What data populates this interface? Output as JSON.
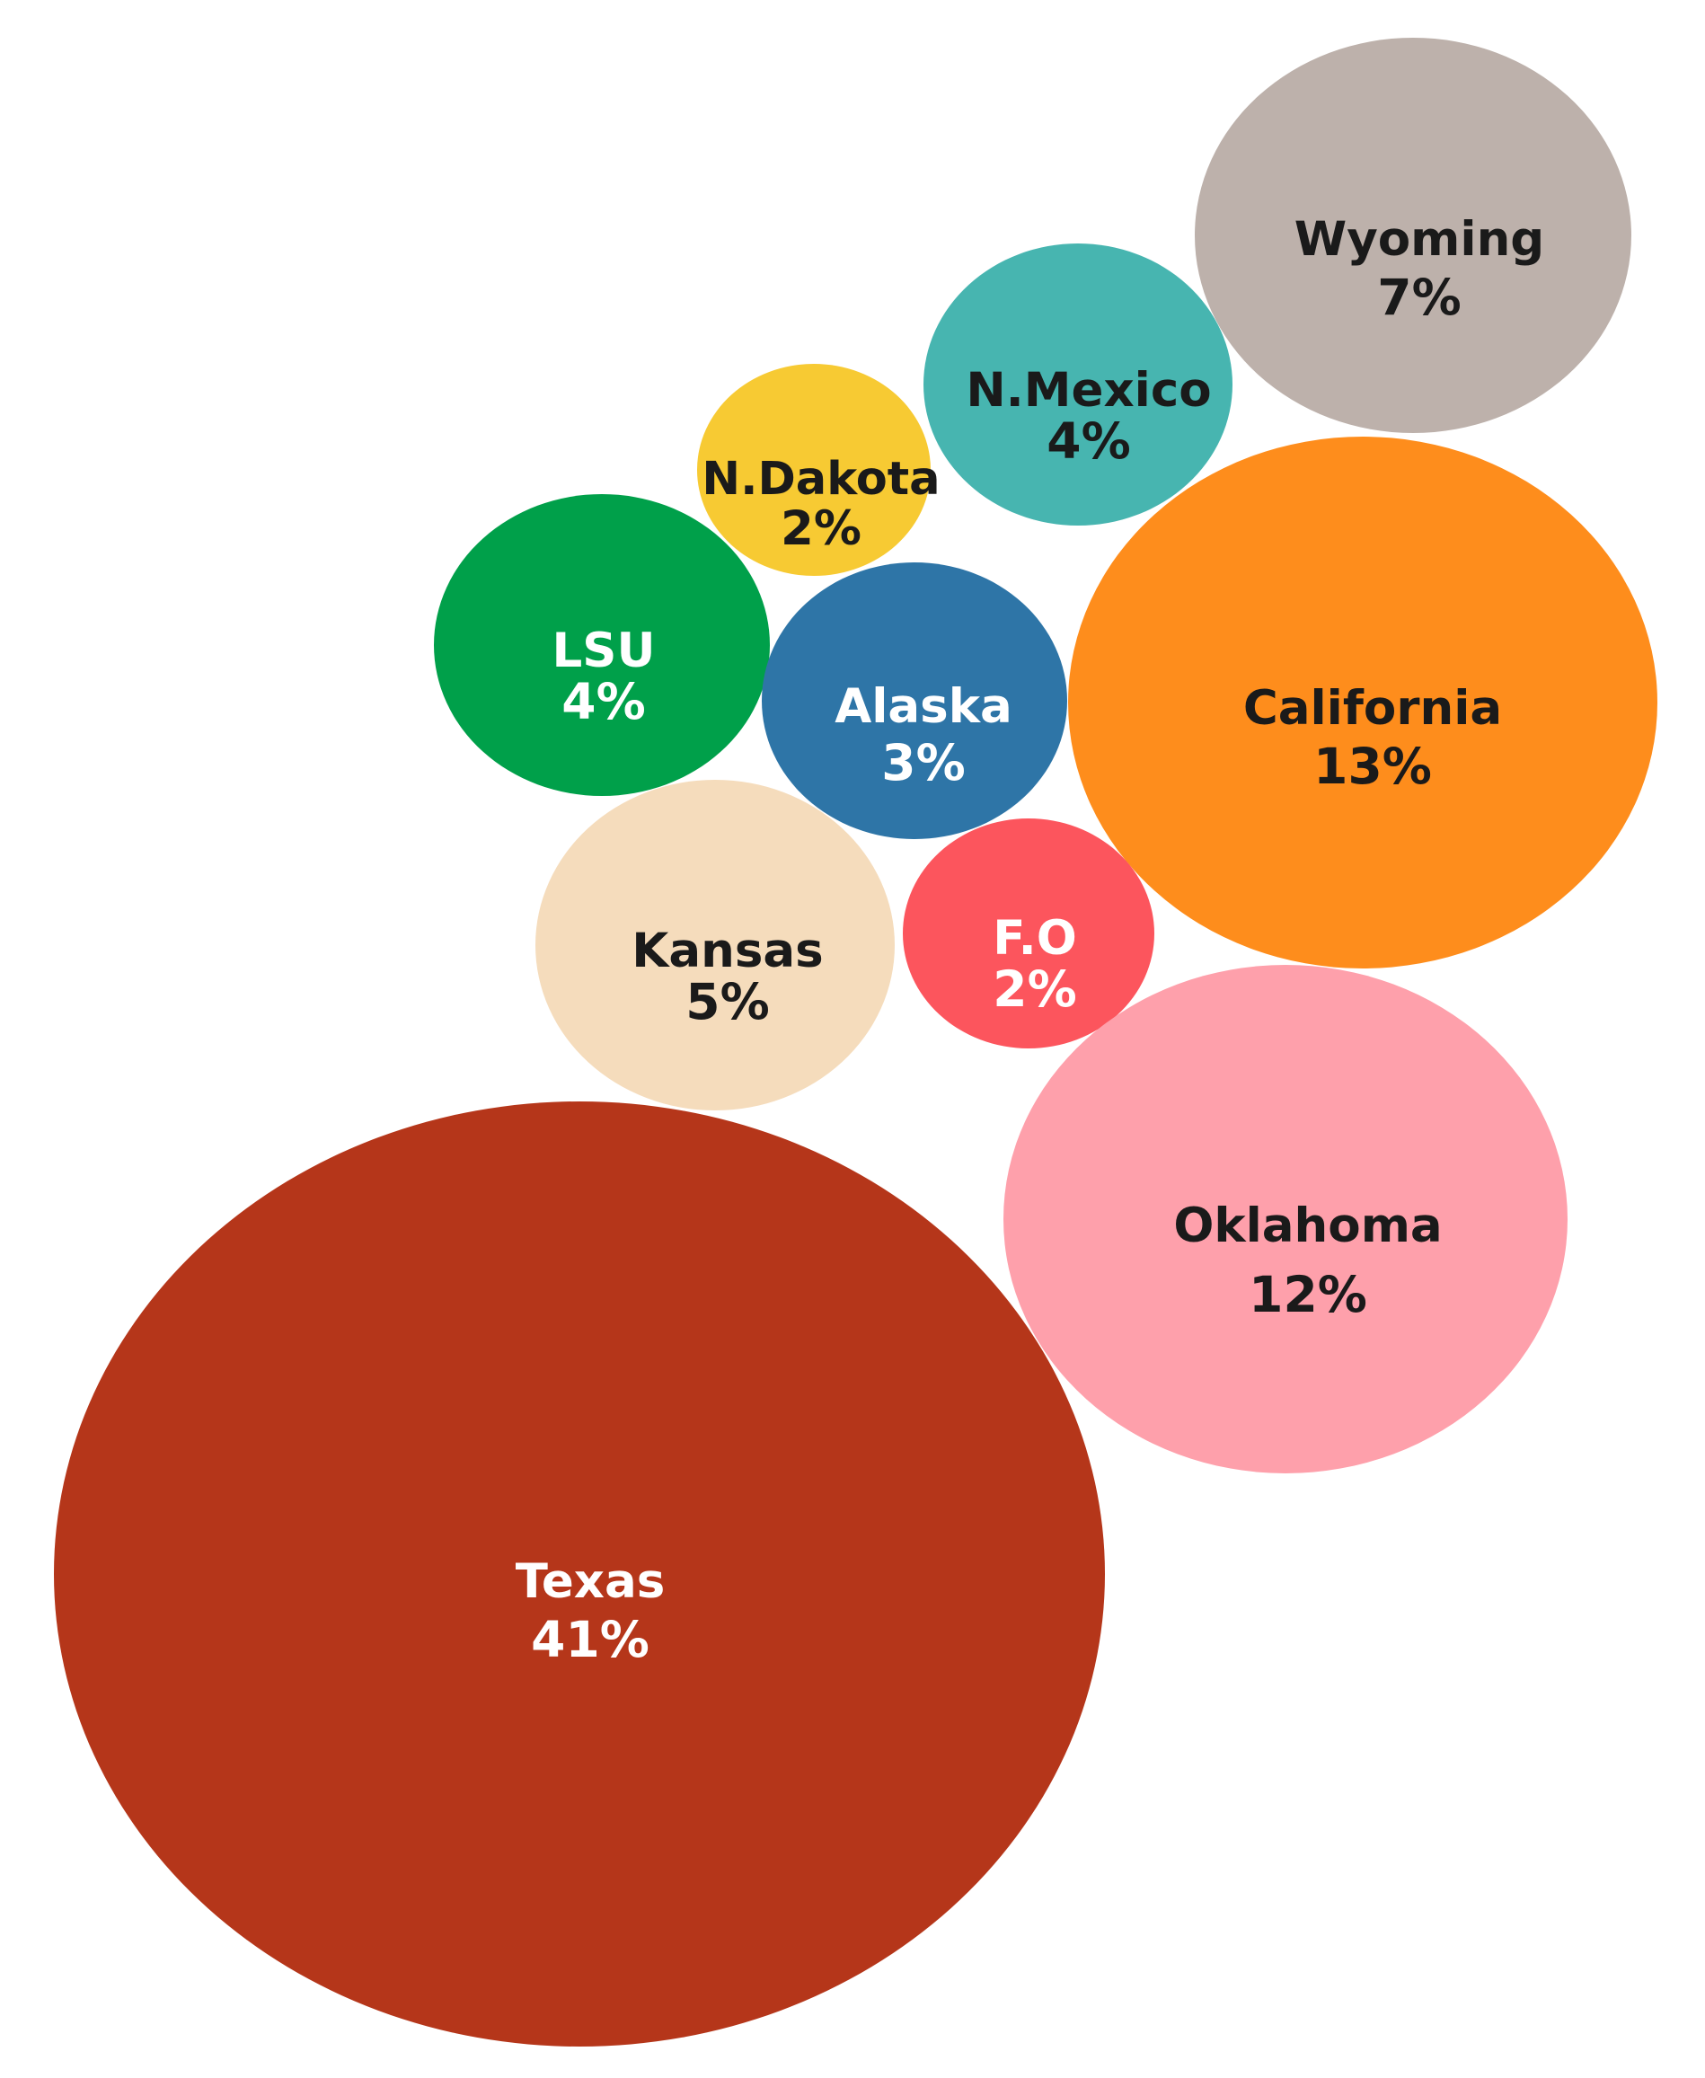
{
  "chart_data": {
    "type": "bubble",
    "title": "",
    "items": [
      {
        "name": "Wyoming",
        "value": 7,
        "label": "7%",
        "color": "#bdb1ab",
        "text_color": "#1a1a1a"
      },
      {
        "name": "N.Mexico",
        "value": 4,
        "label": "4%",
        "color": "#47b5b0",
        "text_color": "#1a1a1a"
      },
      {
        "name": "N.Dakota",
        "value": 2,
        "label": "2%",
        "color": "#f7ca33",
        "text_color": "#1a1a1a"
      },
      {
        "name": "LSU",
        "value": 4,
        "label": "4%",
        "color": "#00a04a",
        "text_color": "#ffffff"
      },
      {
        "name": "Alaska",
        "value": 3,
        "label": "3%",
        "color": "#2e75a7",
        "text_color": "#ffffff"
      },
      {
        "name": "California",
        "value": 13,
        "label": "13%",
        "color": "#fe8d1c",
        "text_color": "#1a1a1a"
      },
      {
        "name": "Kansas",
        "value": 5,
        "label": "5%",
        "color": "#f5dcbc",
        "text_color": "#1a1a1a"
      },
      {
        "name": "F.O",
        "value": 2,
        "label": "2%",
        "color": "#fc555d",
        "text_color": "#ffffff"
      },
      {
        "name": "Oklahoma",
        "value": 12,
        "label": "12%",
        "color": "#fea0ab",
        "text_color": "#1a1a1a"
      },
      {
        "name": "Texas",
        "value": 41,
        "label": "41%",
        "color": "#b5361a",
        "text_color": "#ffffff"
      }
    ]
  }
}
